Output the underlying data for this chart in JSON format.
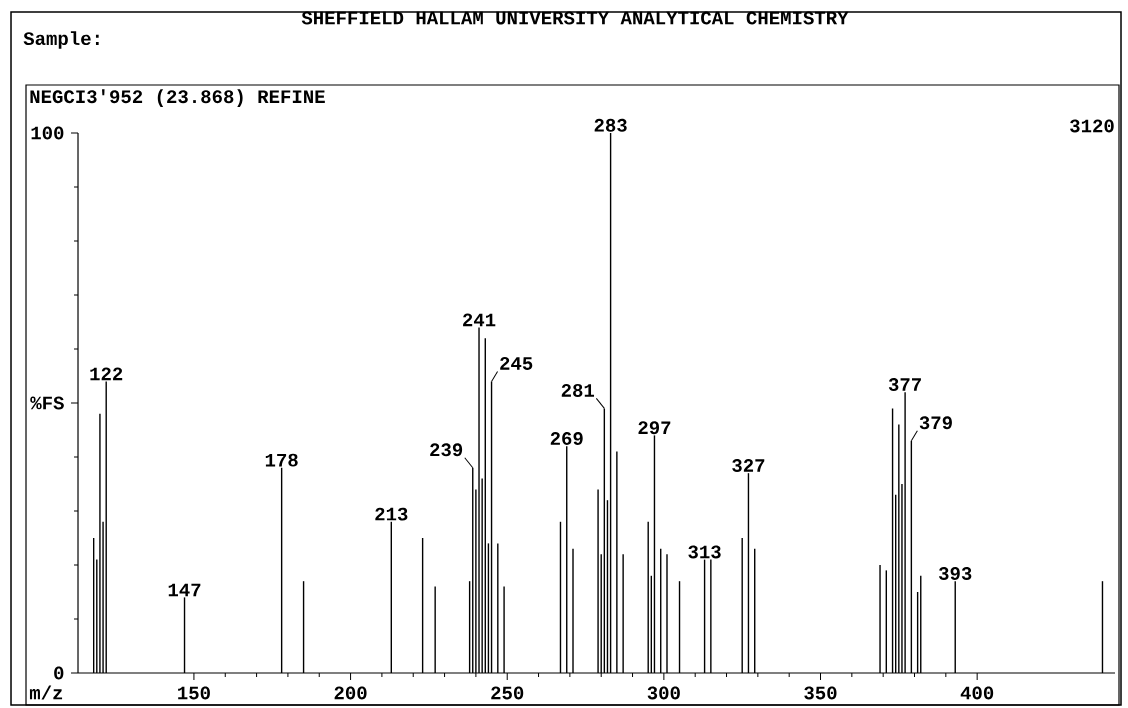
{
  "chart_data": {
    "type": "bar",
    "title": "SHEFFIELD HALLAM UNIVERSITY    ANALYTICAL CHEMISTRY",
    "subtitle": "NEGCI3'952 (23.868)  REFINE",
    "xlabel": "m/z",
    "color": "#000000",
    "x": [
      118,
      119,
      120,
      121,
      122,
      147,
      178,
      185,
      213,
      223,
      227,
      238,
      239,
      240,
      241,
      242,
      243,
      244,
      245,
      247,
      249,
      267,
      269,
      271,
      279,
      280,
      281,
      282,
      283,
      285,
      287,
      295,
      296,
      297,
      299,
      301,
      305,
      313,
      315,
      325,
      327,
      329,
      369,
      371,
      373,
      374,
      375,
      376,
      377,
      379,
      381,
      382,
      393,
      440
    ],
    "values": [
      25,
      21,
      48,
      28,
      54,
      14,
      38,
      17,
      28,
      25,
      16,
      17,
      38,
      34,
      64,
      36,
      62,
      24,
      54,
      24,
      16,
      28,
      42,
      23,
      34,
      22,
      49,
      32,
      100,
      41,
      22,
      28,
      18,
      44,
      23,
      22,
      17,
      21,
      21,
      25,
      37,
      23,
      20,
      19,
      49,
      33,
      46,
      35,
      52,
      43,
      15,
      18,
      17,
      17
    ],
    "xlim": [
      113,
      444
    ],
    "ylim": [
      0,
      100
    ],
    "xticks": [
      150,
      200,
      250,
      300,
      350,
      400
    ],
    "yticks": [
      0,
      {
        "value": 50,
        "label": "%FS"
      },
      100
    ],
    "grid": false,
    "annotations": [
      "Sample:",
      "3120",
      {
        "text": "122",
        "x": 122,
        "y": 54
      },
      {
        "text": "147",
        "x": 147,
        "y": 14
      },
      {
        "text": "178",
        "x": 178,
        "y": 38
      },
      {
        "text": "213",
        "x": 213,
        "y": 28
      },
      {
        "text": "239",
        "x": 239,
        "y": 38
      },
      {
        "text": "241",
        "x": 241,
        "y": 64
      },
      {
        "text": "245",
        "x": 245,
        "y": 54
      },
      {
        "text": "269",
        "x": 269,
        "y": 42
      },
      {
        "text": "281",
        "x": 281,
        "y": 49
      },
      {
        "text": "283",
        "x": 283,
        "y": 100
      },
      {
        "text": "297",
        "x": 297,
        "y": 44
      },
      {
        "text": "313",
        "x": 313,
        "y": 21
      },
      {
        "text": "327",
        "x": 327,
        "y": 37
      },
      {
        "text": "377",
        "x": 377,
        "y": 52
      },
      {
        "text": "379",
        "x": 379,
        "y": 43
      },
      {
        "text": "393",
        "x": 393,
        "y": 17
      }
    ]
  }
}
